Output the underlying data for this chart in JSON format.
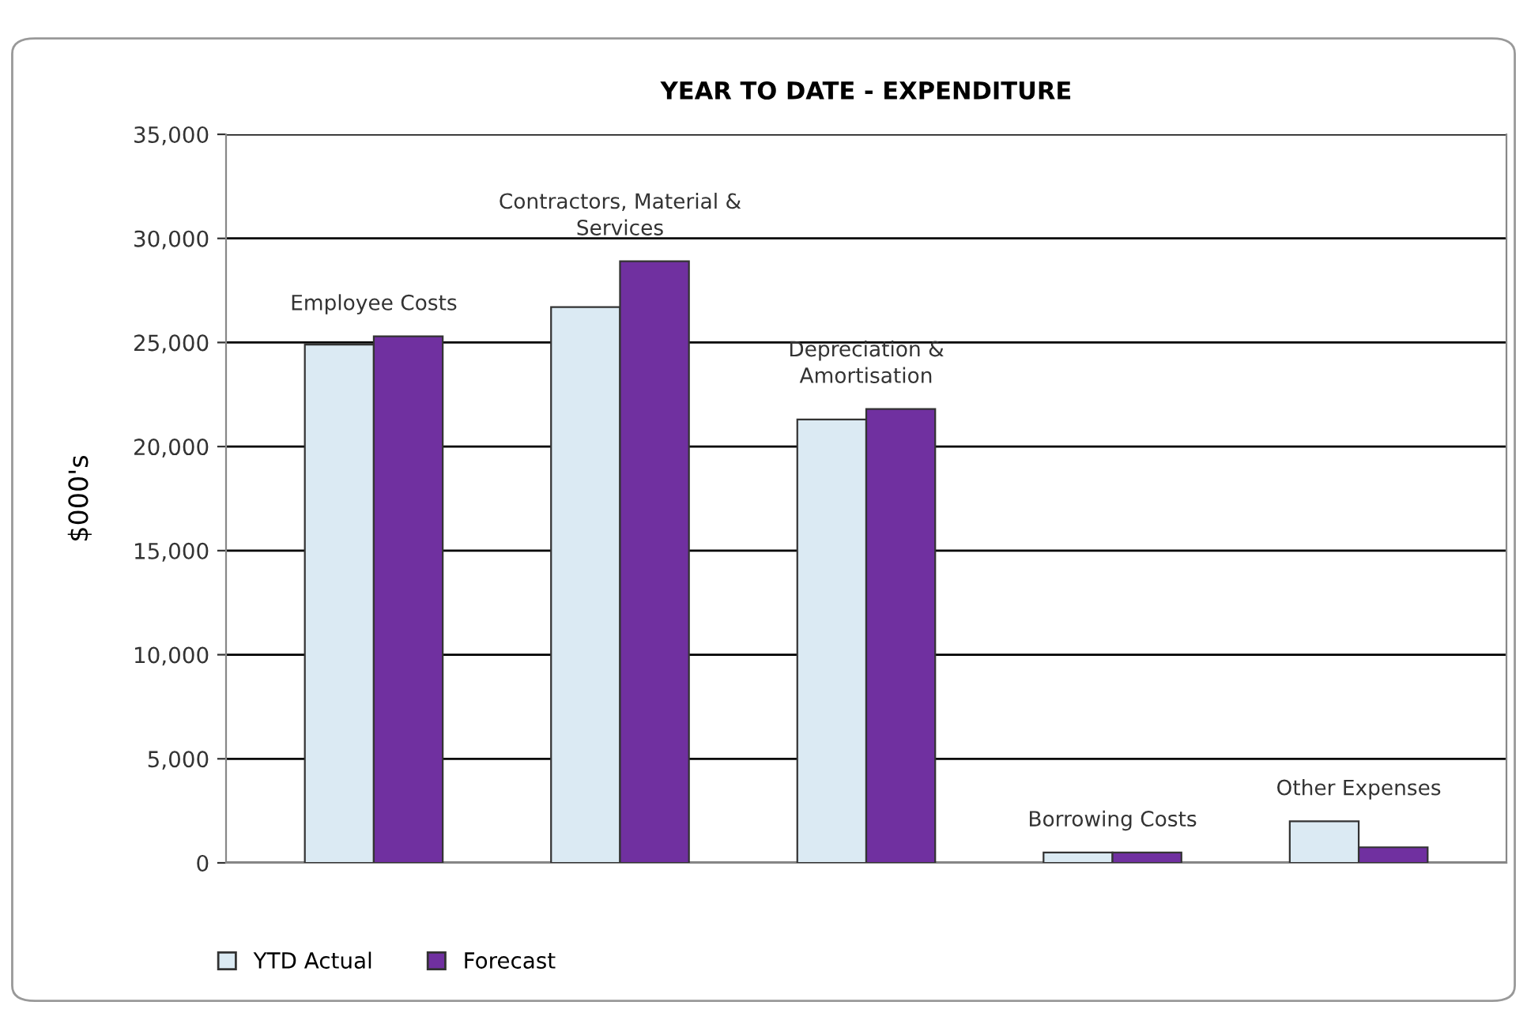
{
  "chart_data": {
    "type": "bar",
    "title": "YEAR TO DATE - EXPENDITURE",
    "ylabel": "$000's",
    "categories": [
      "Employee Costs",
      "Contractors, Material &\nServices",
      "Depreciation &\nAmortisation",
      "Borrowing Costs",
      "Other Expenses"
    ],
    "series": [
      {
        "name": "YTD Actual",
        "color": "#dbeaf3",
        "values": [
          24900,
          26700,
          21300,
          500,
          2000
        ]
      },
      {
        "name": "Forecast",
        "color": "#7030a0",
        "values": [
          25300,
          28900,
          21800,
          500,
          750
        ]
      }
    ],
    "ylim": [
      0,
      35000
    ],
    "yticks": [
      {
        "value": 0,
        "label": "0"
      },
      {
        "value": 5000,
        "label": "5,000"
      },
      {
        "value": 10000,
        "label": "10,000"
      },
      {
        "value": 15000,
        "label": "15,000"
      },
      {
        "value": 20000,
        "label": "20,000"
      },
      {
        "value": 25000,
        "label": "25,000"
      },
      {
        "value": 30000,
        "label": "30,000"
      },
      {
        "value": 35000,
        "label": "35,000"
      }
    ],
    "grid": "y",
    "legend": "bottom left"
  }
}
